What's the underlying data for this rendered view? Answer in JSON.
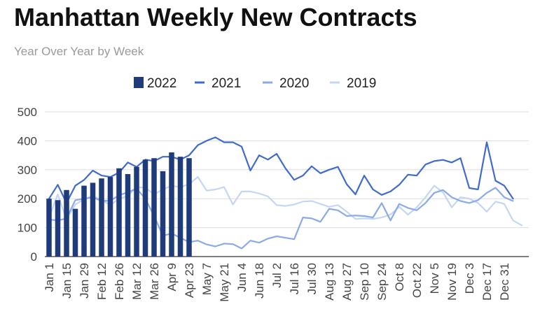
{
  "chart_data": {
    "type": "bar",
    "title": "Manhattan Weekly New Contracts",
    "subtitle": "Year Over Year by Week",
    "xlabel": "",
    "ylabel": "",
    "ylim": [
      0,
      500
    ],
    "yticks": [
      0,
      100,
      200,
      300,
      400,
      500
    ],
    "grid": true,
    "legend_position": "top",
    "x_tick_labels": [
      "Jan 1",
      "Jan 15",
      "Jan 29",
      "Feb 12",
      "Feb 26",
      "Mar 12",
      "Mar 26",
      "Apr 9",
      "Apr 23",
      "May 7",
      "May 21",
      "Jun 4",
      "Jun 18",
      "Jul 2",
      "Jul 16",
      "Jul 30",
      "Aug 13",
      "Aug 27",
      "Sep 10",
      "Sep 24",
      "Oct 8",
      "Oct 22",
      "Nov 5",
      "Nov 19",
      "Dec 3",
      "Dec 17",
      "Dec 31"
    ],
    "series": [
      {
        "name": "2022",
        "type": "bar",
        "color": "#1f3b7a",
        "values": [
          200,
          195,
          230,
          165,
          245,
          255,
          270,
          275,
          305,
          285,
          310,
          335,
          340,
          295,
          360,
          345,
          340
        ]
      },
      {
        "name": "2021",
        "type": "line",
        "color": "#3f6bd0",
        "values": [
          200,
          248,
          185,
          245,
          265,
          297,
          280,
          275,
          290,
          325,
          310,
          335,
          330,
          345,
          345,
          335,
          350,
          385,
          400,
          412,
          395,
          395,
          380,
          297,
          350,
          335,
          355,
          305,
          265,
          280,
          312,
          288,
          300,
          310,
          250,
          215,
          280,
          232,
          213,
          225,
          248,
          283,
          280,
          318,
          330,
          334,
          325,
          340,
          237,
          232,
          395,
          262,
          245,
          200
        ]
      },
      {
        "name": "2020",
        "type": "line",
        "color": "#8aaae8",
        "values": [
          128,
          125,
          132,
          195,
          200,
          205,
          192,
          193,
          212,
          222,
          235,
          200,
          140,
          72,
          80,
          65,
          50,
          55,
          42,
          35,
          45,
          43,
          28,
          55,
          48,
          62,
          70,
          65,
          60,
          135,
          132,
          120,
          165,
          160,
          140,
          142,
          140,
          135,
          185,
          125,
          182,
          168,
          160,
          185,
          220,
          230,
          205,
          192,
          185,
          195,
          220,
          238,
          205,
          192
        ]
      },
      {
        "name": "2019",
        "type": "line",
        "color": "#c5d6f4",
        "values": [
          135,
          215,
          128,
          180,
          198,
          210,
          195,
          178,
          200,
          210,
          240,
          238,
          215,
          232,
          245,
          240,
          250,
          275,
          228,
          232,
          240,
          180,
          225,
          225,
          218,
          208,
          178,
          175,
          180,
          190,
          192,
          182,
          172,
          178,
          155,
          130,
          132,
          130,
          135,
          145,
          172,
          145,
          170,
          205,
          245,
          222,
          170,
          205,
          200,
          185,
          155,
          190,
          182,
          125,
          108
        ]
      }
    ]
  }
}
